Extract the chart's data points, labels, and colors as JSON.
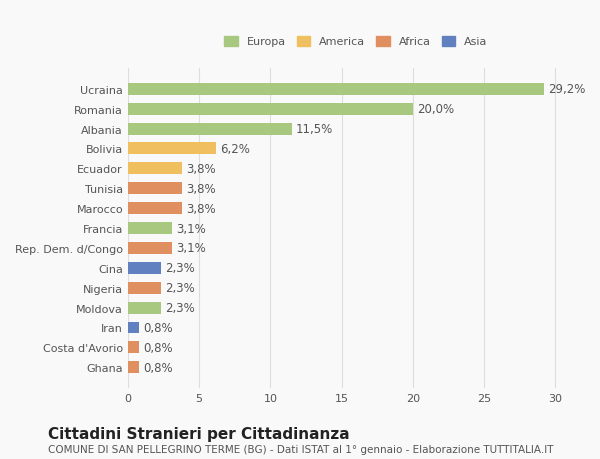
{
  "countries": [
    "Ucraina",
    "Romania",
    "Albania",
    "Bolivia",
    "Ecuador",
    "Tunisia",
    "Marocco",
    "Francia",
    "Rep. Dem. d/Congo",
    "Cina",
    "Nigeria",
    "Moldova",
    "Iran",
    "Costa d'Avorio",
    "Ghana"
  ],
  "values": [
    29.2,
    20.0,
    11.5,
    6.2,
    3.8,
    3.8,
    3.8,
    3.1,
    3.1,
    2.3,
    2.3,
    2.3,
    0.8,
    0.8,
    0.8
  ],
  "labels": [
    "29,2%",
    "20,0%",
    "11,5%",
    "6,2%",
    "3,8%",
    "3,8%",
    "3,8%",
    "3,1%",
    "3,1%",
    "2,3%",
    "2,3%",
    "2,3%",
    "0,8%",
    "0,8%",
    "0,8%"
  ],
  "continents": [
    "Europa",
    "Europa",
    "Europa",
    "America",
    "America",
    "Africa",
    "Africa",
    "Europa",
    "Africa",
    "Asia",
    "Africa",
    "Europa",
    "Asia",
    "Africa",
    "Africa"
  ],
  "continent_colors": {
    "Europa": "#a8c880",
    "America": "#f0c060",
    "Africa": "#e09060",
    "Asia": "#6080c0"
  },
  "legend_order": [
    "Europa",
    "America",
    "Africa",
    "Asia"
  ],
  "title": "Cittadini Stranieri per Cittadinanza",
  "subtitle": "COMUNE DI SAN PELLEGRINO TERME (BG) - Dati ISTAT al 1° gennaio - Elaborazione TUTTITALIA.IT",
  "xlim": [
    0,
    32
  ],
  "xticks": [
    0,
    5,
    10,
    15,
    20,
    25,
    30
  ],
  "background_color": "#f9f9f9",
  "grid_color": "#dddddd",
  "bar_height": 0.6,
  "label_fontsize": 8.5,
  "title_fontsize": 11,
  "subtitle_fontsize": 7.5,
  "tick_fontsize": 8
}
